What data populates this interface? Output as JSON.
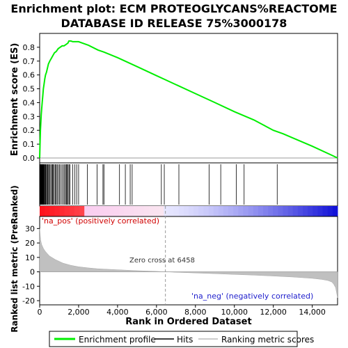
{
  "chart_data": {
    "type": "line",
    "title_line1": "Enrichment plot: ECM PROTEOGLYCANS%REACTOME",
    "title_line2": "DATABASE ID RELEASE 75%3000178",
    "top_panel": {
      "ylabel": "Enrichment score (ES)",
      "ylim": [
        0.0,
        0.9
      ],
      "yticks": [
        "0.0",
        "0.1",
        "0.2",
        "0.3",
        "0.4",
        "0.5",
        "0.6",
        "0.7",
        "0.8"
      ],
      "series": [
        {
          "name": "Enrichment profile",
          "color": "#00ee00",
          "x": [
            0,
            20,
            40,
            60,
            80,
            100,
            130,
            160,
            190,
            220,
            260,
            300,
            350,
            400,
            450,
            520,
            600,
            680,
            760,
            850,
            950,
            1050,
            1150,
            1250,
            1350,
            1450,
            1500,
            1600,
            1700,
            1850,
            2000,
            2200,
            2500,
            3000,
            3300,
            4000,
            5000,
            6000,
            6458,
            7000,
            8000,
            9000,
            10000,
            11000,
            12000,
            12500,
            13000,
            14000,
            15000,
            15300
          ],
          "y": [
            0.0,
            0.12,
            0.2,
            0.26,
            0.31,
            0.35,
            0.4,
            0.45,
            0.5,
            0.53,
            0.57,
            0.6,
            0.62,
            0.65,
            0.68,
            0.7,
            0.72,
            0.74,
            0.76,
            0.77,
            0.79,
            0.8,
            0.81,
            0.81,
            0.82,
            0.83,
            0.845,
            0.845,
            0.84,
            0.84,
            0.84,
            0.83,
            0.815,
            0.78,
            0.765,
            0.725,
            0.66,
            0.595,
            0.565,
            0.53,
            0.465,
            0.4,
            0.335,
            0.275,
            0.2,
            0.175,
            0.145,
            0.085,
            0.02,
            0.0
          ]
        }
      ]
    },
    "hits": [
      10,
      25,
      40,
      55,
      70,
      85,
      100,
      115,
      130,
      150,
      170,
      190,
      210,
      235,
      260,
      290,
      320,
      360,
      400,
      430,
      470,
      520,
      570,
      620,
      660,
      700,
      750,
      800,
      850,
      900,
      960,
      1020,
      1080,
      1150,
      1220,
      1280,
      1330,
      1380,
      1420,
      1460,
      1510,
      1560,
      1700,
      1800,
      1900,
      2000,
      2450,
      2950,
      3250,
      3300,
      4100,
      4400,
      4650,
      4750,
      6250,
      6400,
      7150,
      8700,
      9300,
      10100,
      10500,
      12200
    ],
    "bottom_panel": {
      "xlabel": "Rank in Ordered Dataset",
      "ylabel": "Ranked list metric (PreRanked)",
      "ylim": [
        -20,
        35
      ],
      "yticks": [
        "-20",
        "-10",
        "0",
        "10",
        "20",
        "30"
      ],
      "xlim": [
        0,
        15300
      ],
      "xticks": [
        "0",
        "2,000",
        "4,000",
        "6,000",
        "8,000",
        "10,000",
        "12,000",
        "14,000"
      ],
      "metric_profile": {
        "x": [
          0,
          50,
          100,
          200,
          300,
          500,
          800,
          1200,
          1600,
          2000,
          2500,
          3000,
          4000,
          5000,
          6000,
          6458,
          7000,
          8000,
          9000,
          10000,
          11000,
          12000,
          13000,
          14000,
          14500,
          14800,
          15000,
          15100,
          15200,
          15300
        ],
        "y": [
          30,
          22,
          19,
          16,
          14,
          11,
          8.5,
          6,
          4.5,
          3.5,
          2.7,
          2.1,
          1.4,
          0.8,
          0.3,
          0.0,
          -0.3,
          -0.8,
          -1.3,
          -1.8,
          -2.3,
          -2.9,
          -3.6,
          -4.5,
          -5.3,
          -6.0,
          -7.0,
          -8.5,
          -11,
          -18
        ]
      },
      "zero_cross_label": "Zero cross at 6458",
      "zero_cross": 6458,
      "pos_label": "'na_pos' (positively correlated)",
      "neg_label": "'na_neg' (negatively correlated)"
    },
    "legend": [
      {
        "label": "Enrichment profile",
        "color": "#00ee00"
      },
      {
        "label": "Hits",
        "color": "#000000"
      },
      {
        "label": "Ranking metric scores",
        "color": "#bbbbbb"
      }
    ]
  }
}
